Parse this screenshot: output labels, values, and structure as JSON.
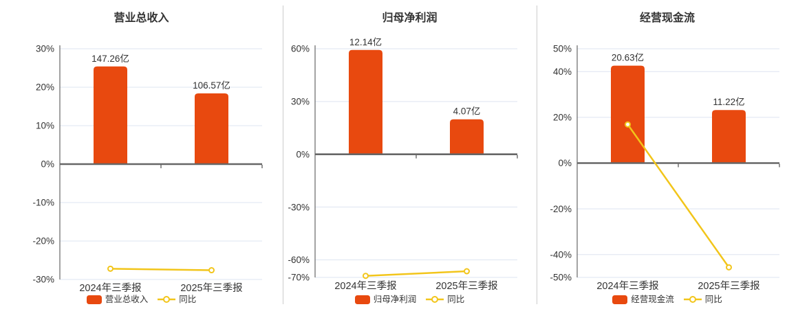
{
  "colors": {
    "bar": "#e8490f",
    "line": "#f2c51a",
    "grid": "#dde4f0",
    "axis": "#666666",
    "text": "#333333",
    "divider": "#cccccc"
  },
  "chart_data": [
    {
      "type": "bar",
      "title": "营业总收入",
      "categories": [
        "2024年三季报",
        "2025年三季报"
      ],
      "bar_series": {
        "name": "营业总收入",
        "unit": "亿",
        "values": [
          147.26,
          106.57
        ],
        "labels": [
          "147.26亿",
          "106.57亿"
        ]
      },
      "line_series": {
        "name": "同比",
        "unit": "%",
        "values": [
          -27.2,
          -27.6
        ]
      },
      "y_axis": {
        "ticks": [
          30,
          20,
          10,
          0,
          -10,
          -20,
          -30
        ],
        "min": -30,
        "max": 30,
        "tick_suffix": "%"
      },
      "bar_tops_on_pct_axis": [
        25.4,
        18.4
      ],
      "legend_position": "bottom",
      "grid": true
    },
    {
      "type": "bar",
      "title": "归母净利润",
      "categories": [
        "2024年三季报",
        "2025年三季报"
      ],
      "bar_series": {
        "name": "归母净利润",
        "unit": "亿",
        "values": [
          12.14,
          4.07
        ],
        "labels": [
          "12.14亿",
          "4.07亿"
        ]
      },
      "line_series": {
        "name": "同比",
        "unit": "%",
        "values": [
          -69.1,
          -66.5
        ]
      },
      "y_axis": {
        "ticks": [
          60,
          30,
          0,
          -30,
          -60,
          -70
        ],
        "min": -70,
        "max": 60,
        "tick_suffix": "%"
      },
      "bar_tops_on_pct_axis": [
        59.3,
        19.9
      ],
      "legend_position": "bottom",
      "grid": true
    },
    {
      "type": "bar",
      "title": "经营现金流",
      "categories": [
        "2024年三季报",
        "2025年三季报"
      ],
      "bar_series": {
        "name": "经营现金流",
        "unit": "亿",
        "values": [
          20.63,
          11.22
        ],
        "labels": [
          "20.63亿",
          "11.22亿"
        ]
      },
      "line_series": {
        "name": "同比",
        "unit": "%",
        "values": [
          16.9,
          -45.6
        ]
      },
      "y_axis": {
        "ticks": [
          50,
          40,
          20,
          0,
          -20,
          -40,
          -50
        ],
        "min": -50,
        "max": 50,
        "tick_suffix": "%"
      },
      "bar_tops_on_pct_axis": [
        42.6,
        23.2
      ],
      "legend_position": "bottom",
      "grid": true
    }
  ]
}
